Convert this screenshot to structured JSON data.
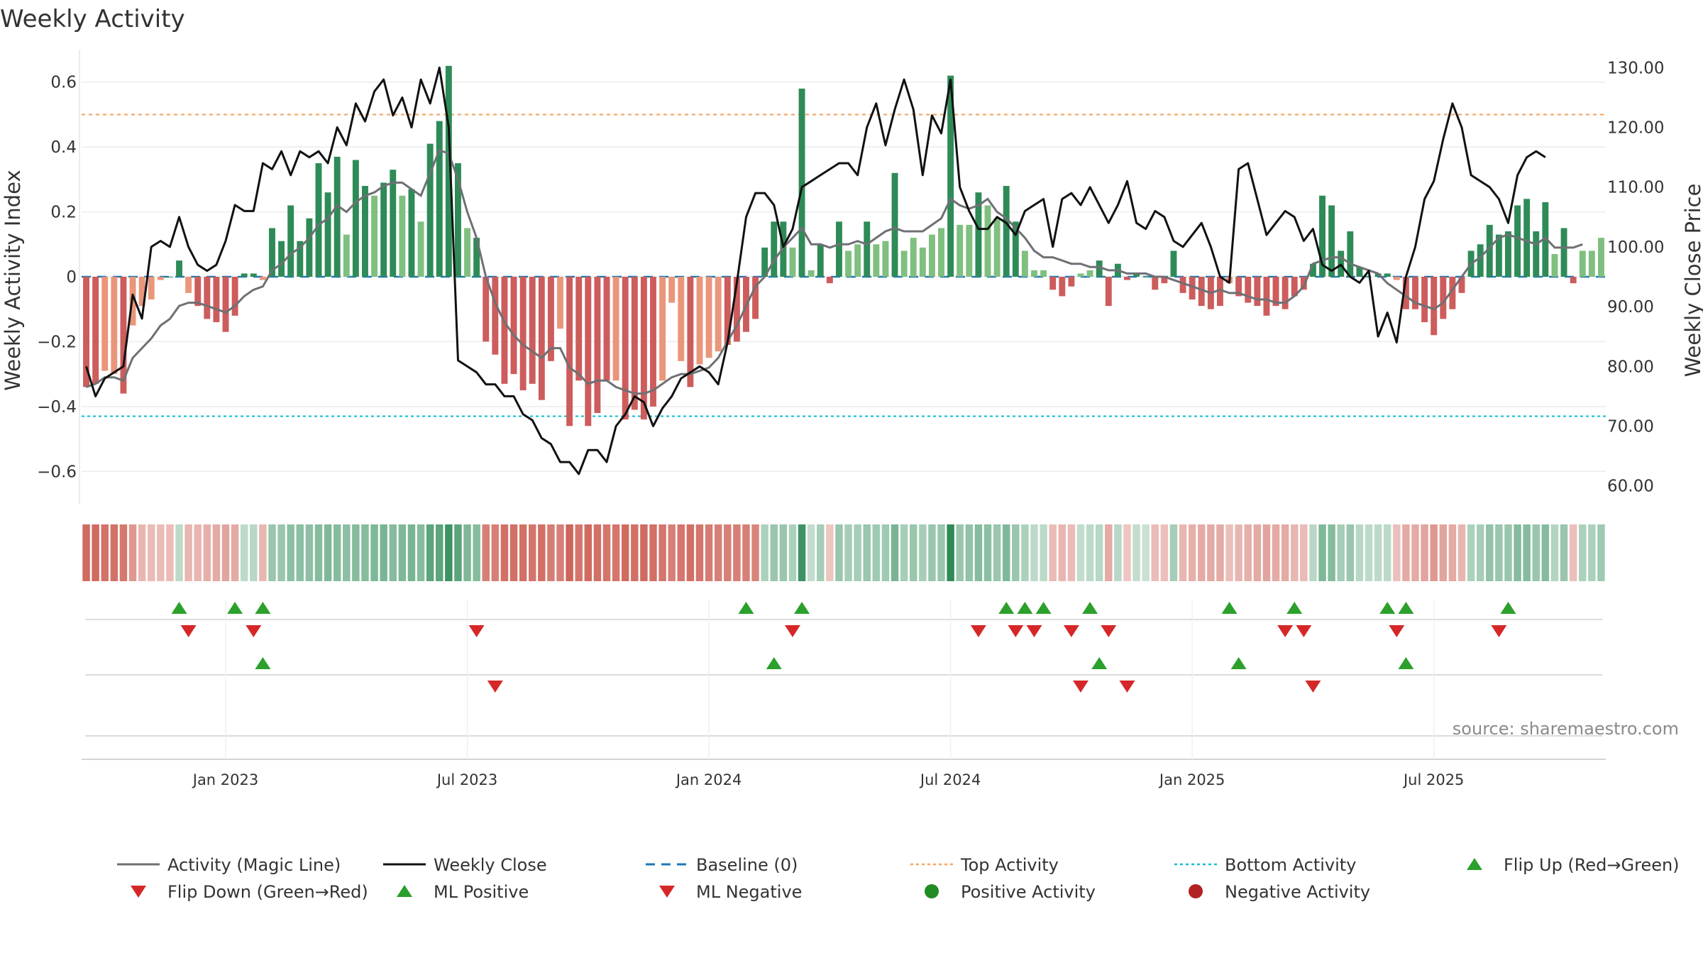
{
  "chart_data": {
    "type": "bar",
    "title": "Weekly Activity",
    "ylabel": "Weekly Activity Index",
    "y2label": "Weekly Close Price",
    "ylim": [
      -0.7,
      0.7
    ],
    "y2lim": [
      57,
      133
    ],
    "yticks": [
      {
        "v": 0.6,
        "label": "0.6"
      },
      {
        "v": 0.4,
        "label": "0.4"
      },
      {
        "v": 0.2,
        "label": "0.2"
      },
      {
        "v": 0,
        "label": "0"
      },
      {
        "v": -0.2,
        "label": "−0.2"
      },
      {
        "v": -0.4,
        "label": "−0.4"
      },
      {
        "v": -0.6,
        "label": "−0.6"
      }
    ],
    "y2ticks": [
      {
        "v": 130,
        "label": "130.00"
      },
      {
        "v": 120,
        "label": "120.00"
      },
      {
        "v": 110,
        "label": "110.00"
      },
      {
        "v": 100,
        "label": "100.00"
      },
      {
        "v": 90,
        "label": "90.00"
      },
      {
        "v": 80,
        "label": "80.00"
      },
      {
        "v": 70,
        "label": "70.00"
      },
      {
        "v": 60,
        "label": "60.00"
      }
    ],
    "xticks": [
      {
        "i": 15,
        "label": "Jan 2023"
      },
      {
        "i": 41,
        "label": "Jul 2023"
      },
      {
        "i": 67,
        "label": "Jan 2024"
      },
      {
        "i": 93,
        "label": "Jul 2024"
      },
      {
        "i": 119,
        "label": "Jan 2025"
      },
      {
        "i": 145,
        "label": "Jul 2025"
      }
    ],
    "top_activity": 0.5,
    "bottom_activity": -0.43,
    "activity": [
      -0.34,
      -0.33,
      -0.29,
      -0.3,
      -0.36,
      -0.15,
      -0.09,
      -0.07,
      -0.01,
      0.0,
      0.05,
      -0.05,
      -0.09,
      -0.13,
      -0.14,
      -0.17,
      -0.12,
      0.01,
      0.01,
      -0.01,
      0.15,
      0.11,
      0.22,
      0.11,
      0.18,
      0.35,
      0.26,
      0.37,
      0.13,
      0.36,
      0.28,
      0.25,
      0.29,
      0.33,
      0.25,
      0.27,
      0.17,
      0.41,
      0.48,
      0.65,
      0.35,
      0.15,
      0.12,
      -0.2,
      -0.24,
      -0.33,
      -0.3,
      -0.35,
      -0.33,
      -0.38,
      -0.26,
      -0.16,
      -0.46,
      -0.32,
      -0.46,
      -0.42,
      -0.32,
      -0.32,
      -0.44,
      -0.41,
      -0.44,
      -0.4,
      -0.32,
      -0.08,
      -0.26,
      -0.34,
      -0.27,
      -0.25,
      -0.23,
      -0.21,
      -0.2,
      -0.17,
      -0.13,
      0.09,
      0.17,
      0.17,
      0.09,
      0.58,
      0.02,
      0.1,
      -0.02,
      0.17,
      0.08,
      0.1,
      0.17,
      0.1,
      0.11,
      0.32,
      0.08,
      0.12,
      0.09,
      0.13,
      0.15,
      0.62,
      0.16,
      0.16,
      0.26,
      0.22,
      0.18,
      0.28,
      0.17,
      0.08,
      0.02,
      0.02,
      -0.04,
      -0.06,
      -0.03,
      0.01,
      0.02,
      0.05,
      -0.09,
      0.04,
      -0.01,
      0.01,
      0.0,
      -0.04,
      -0.02,
      0.08,
      -0.05,
      -0.07,
      -0.09,
      -0.1,
      -0.09,
      -0.02,
      -0.06,
      -0.08,
      -0.09,
      -0.12,
      -0.09,
      -0.1,
      -0.06,
      -0.04,
      0.04,
      0.25,
      0.22,
      0.08,
      0.14,
      0.03,
      0.0,
      0.01,
      0.01,
      -0.01,
      -0.1,
      -0.1,
      -0.14,
      -0.18,
      -0.13,
      -0.1,
      -0.05,
      0.08,
      0.1,
      0.16,
      0.13,
      0.14,
      0.22,
      0.24,
      0.14,
      0.23,
      0.07,
      0.15,
      -0.02,
      0.08,
      0.08,
      0.12
    ],
    "magic_line": [
      -0.34,
      -0.33,
      -0.31,
      -0.31,
      -0.32,
      -0.25,
      -0.22,
      -0.19,
      -0.15,
      -0.13,
      -0.09,
      -0.08,
      -0.08,
      -0.09,
      -0.1,
      -0.11,
      -0.09,
      -0.06,
      -0.04,
      -0.03,
      0.02,
      0.04,
      0.07,
      0.09,
      0.12,
      0.16,
      0.18,
      0.22,
      0.2,
      0.23,
      0.25,
      0.26,
      0.28,
      0.29,
      0.29,
      0.27,
      0.25,
      0.32,
      0.39,
      0.38,
      0.3,
      0.2,
      0.12,
      0.0,
      -0.08,
      -0.14,
      -0.18,
      -0.21,
      -0.23,
      -0.25,
      -0.22,
      -0.22,
      -0.28,
      -0.3,
      -0.33,
      -0.32,
      -0.32,
      -0.34,
      -0.35,
      -0.36,
      -0.36,
      -0.35,
      -0.33,
      -0.31,
      -0.3,
      -0.3,
      -0.29,
      -0.28,
      -0.25,
      -0.2,
      -0.15,
      -0.09,
      -0.03,
      0.0,
      0.05,
      0.09,
      0.12,
      0.15,
      0.1,
      0.1,
      0.09,
      0.1,
      0.1,
      0.11,
      0.1,
      0.12,
      0.14,
      0.15,
      0.14,
      0.14,
      0.14,
      0.16,
      0.18,
      0.24,
      0.22,
      0.21,
      0.22,
      0.24,
      0.2,
      0.18,
      0.15,
      0.12,
      0.08,
      0.06,
      0.06,
      0.05,
      0.04,
      0.04,
      0.03,
      0.03,
      0.02,
      0.02,
      0.01,
      0.01,
      0.01,
      0.0,
      0.0,
      -0.01,
      -0.02,
      -0.03,
      -0.04,
      -0.05,
      -0.04,
      -0.05,
      -0.05,
      -0.06,
      -0.07,
      -0.07,
      -0.08,
      -0.08,
      -0.06,
      -0.03,
      0.04,
      0.05,
      0.06,
      0.06,
      0.04,
      0.03,
      0.02,
      0.01,
      -0.02,
      -0.04,
      -0.06,
      -0.08,
      -0.09,
      -0.1,
      -0.08,
      -0.04,
      0.0,
      0.04,
      0.06,
      0.09,
      0.12,
      0.13,
      0.12,
      0.11,
      0.1,
      0.12,
      0.09,
      0.09,
      0.09,
      0.1
    ],
    "weekly_close": [
      80,
      75,
      78,
      79,
      80,
      92,
      88,
      100,
      101,
      100,
      105,
      100,
      97,
      96,
      97,
      101,
      107,
      106,
      106,
      114,
      113,
      116,
      112,
      116,
      115,
      116,
      114,
      120,
      117,
      124,
      121,
      126,
      128,
      122,
      125,
      120,
      128,
      124,
      130,
      120,
      81,
      80,
      79,
      77,
      77,
      75,
      75,
      72,
      71,
      68,
      67,
      64,
      64,
      62,
      66,
      66,
      64,
      70,
      72,
      75,
      74,
      70,
      73,
      75,
      78,
      79,
      80,
      79,
      77,
      84,
      94,
      105,
      109,
      109,
      107,
      100,
      103,
      110,
      111,
      112,
      113,
      114,
      114,
      112,
      120,
      124,
      117,
      123,
      128,
      123,
      112,
      122,
      119,
      128,
      110,
      106,
      103,
      103,
      105,
      104,
      102,
      106,
      107,
      108,
      100,
      108,
      109,
      107,
      110,
      107,
      104,
      107,
      111,
      104,
      103,
      106,
      105,
      101,
      100,
      102,
      104,
      100,
      95,
      94,
      113,
      114,
      108,
      102,
      104,
      106,
      105,
      101,
      103,
      97,
      96,
      97,
      95,
      94,
      96,
      85,
      89,
      84,
      95,
      100,
      108,
      111,
      118,
      124,
      120,
      112,
      111,
      110,
      108,
      104,
      112,
      115,
      116,
      115
    ],
    "strip_values": [
      -0.38,
      -0.38,
      -0.35,
      -0.35,
      -0.33,
      -0.22,
      -0.12,
      -0.1,
      -0.1,
      -0.1,
      0.08,
      -0.12,
      -0.12,
      -0.14,
      -0.16,
      -0.18,
      -0.16,
      0.08,
      0.1,
      -0.12,
      0.2,
      0.2,
      0.24,
      0.24,
      0.24,
      0.26,
      0.28,
      0.26,
      0.24,
      0.26,
      0.26,
      0.28,
      0.3,
      0.26,
      0.28,
      0.3,
      0.26,
      0.4,
      0.4,
      0.5,
      0.4,
      0.28,
      0.26,
      -0.3,
      -0.3,
      -0.36,
      -0.36,
      -0.36,
      -0.34,
      -0.36,
      -0.32,
      -0.3,
      -0.4,
      -0.34,
      -0.38,
      -0.36,
      -0.34,
      -0.34,
      -0.38,
      -0.36,
      -0.38,
      -0.36,
      -0.34,
      -0.3,
      -0.34,
      -0.36,
      -0.34,
      -0.32,
      -0.3,
      -0.3,
      -0.3,
      -0.3,
      -0.28,
      0.14,
      0.2,
      0.2,
      0.14,
      0.5,
      0.06,
      0.16,
      -0.06,
      0.2,
      0.16,
      0.16,
      0.2,
      0.18,
      0.18,
      0.3,
      0.16,
      0.2,
      0.16,
      0.2,
      0.2,
      0.6,
      0.2,
      0.22,
      0.26,
      0.24,
      0.2,
      0.28,
      0.2,
      0.14,
      0.08,
      0.08,
      -0.1,
      -0.12,
      -0.1,
      0.06,
      0.08,
      0.1,
      -0.16,
      0.1,
      -0.06,
      0.06,
      0.04,
      -0.1,
      -0.08,
      0.16,
      -0.12,
      -0.14,
      -0.16,
      -0.16,
      -0.16,
      -0.08,
      -0.12,
      -0.14,
      -0.16,
      -0.18,
      -0.16,
      -0.16,
      -0.12,
      -0.1,
      0.1,
      0.28,
      0.26,
      0.16,
      0.2,
      0.1,
      0.08,
      0.08,
      0.08,
      -0.08,
      -0.16,
      -0.16,
      -0.18,
      -0.22,
      -0.18,
      -0.16,
      -0.12,
      0.14,
      0.16,
      0.22,
      0.2,
      0.2,
      0.26,
      0.26,
      0.2,
      0.26,
      0.12,
      0.2,
      -0.08,
      0.14,
      0.14,
      0.18
    ],
    "flip_up_row1": [
      10,
      16,
      19,
      71,
      77,
      99,
      101,
      103,
      108,
      123,
      130,
      140,
      142,
      153
    ],
    "flip_down_row1": [
      11,
      18,
      42,
      76,
      96,
      100,
      102,
      106,
      110,
      129,
      131,
      141,
      152
    ],
    "ml_positive_row2": [
      19,
      74,
      109,
      124,
      142
    ],
    "ml_negative_row2": [
      44,
      107,
      112,
      132
    ],
    "colors": {
      "strong_green": "#2e8b57",
      "light_green": "#7fbf7f",
      "strong_red": "#cd5c5c",
      "light_red": "#e9967a",
      "magic_line": "#6e7074",
      "close_line": "#111111",
      "baseline": "#1f77b4",
      "top_activity": "#f4a460",
      "bottom_activity": "#17becf",
      "marker_up": "#2ca02c",
      "marker_down": "#d62728",
      "positive_dot": "#228b22",
      "negative_dot": "#b22222"
    },
    "legend": [
      {
        "label": "Activity (Magic Line)",
        "kind": "line",
        "color": "#6e7074"
      },
      {
        "label": "Weekly Close",
        "kind": "line",
        "color": "#111111"
      },
      {
        "label": "Baseline (0)",
        "kind": "dash",
        "color": "#1f77b4"
      },
      {
        "label": "Top Activity",
        "kind": "dot-line",
        "color": "#f4a460"
      },
      {
        "label": "Bottom Activity",
        "kind": "dot-line",
        "color": "#17becf"
      },
      {
        "label": "Flip Up (Red→Green)",
        "kind": "tri-up",
        "color": "#2ca02c"
      },
      {
        "label": "Flip Down (Green→Red)",
        "kind": "tri-down",
        "color": "#d62728"
      },
      {
        "label": "ML Positive",
        "kind": "tri-up",
        "color": "#2ca02c"
      },
      {
        "label": "ML Negative",
        "kind": "tri-down",
        "color": "#d62728"
      },
      {
        "label": "Positive Activity",
        "kind": "circle",
        "color": "#228b22"
      },
      {
        "label": "Negative Activity",
        "kind": "circle",
        "color": "#b22222"
      }
    ],
    "source": "source: sharemaestro.com"
  }
}
